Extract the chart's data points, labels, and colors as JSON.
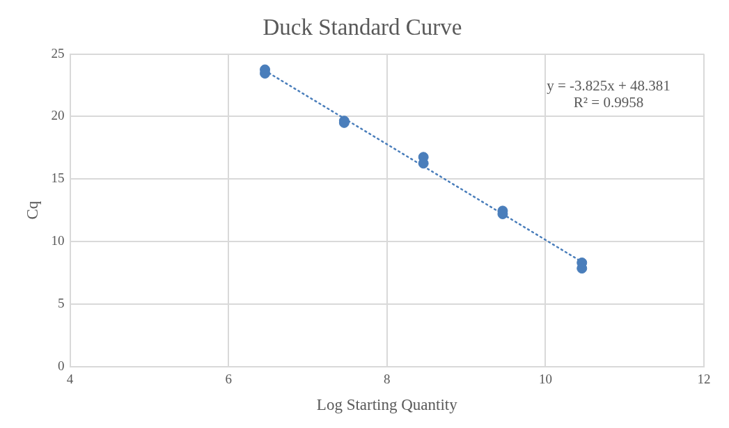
{
  "chart_data": {
    "type": "scatter",
    "title": "Duck Standard Curve",
    "xlabel": "Log Starting Quantity",
    "ylabel": "Cq",
    "xlim": [
      4,
      12
    ],
    "xticks": [
      4,
      6,
      8,
      10,
      12
    ],
    "ylim": [
      0,
      25
    ],
    "yticks": [
      0,
      5,
      10,
      15,
      20,
      25
    ],
    "grid": true,
    "legend": false,
    "marker": "circle",
    "series": [
      {
        "type": "scatter",
        "color": "#4a7ebb",
        "x": [
          6.46,
          6.46,
          7.46,
          7.46,
          8.46,
          8.46,
          9.46,
          9.46,
          10.46,
          10.46
        ],
        "values": [
          23.75,
          23.45,
          19.65,
          19.5,
          16.75,
          16.25,
          12.45,
          12.2,
          8.3,
          7.85
        ]
      },
      {
        "type": "line",
        "color": "#4a7ebb",
        "line_style": "dotted",
        "marker": "none",
        "x": [
          6.46,
          10.46
        ],
        "values": [
          23.67,
          8.37
        ]
      }
    ],
    "annotations": [
      "y = -3.825x + 48.381",
      "R² = 0.9958"
    ]
  }
}
